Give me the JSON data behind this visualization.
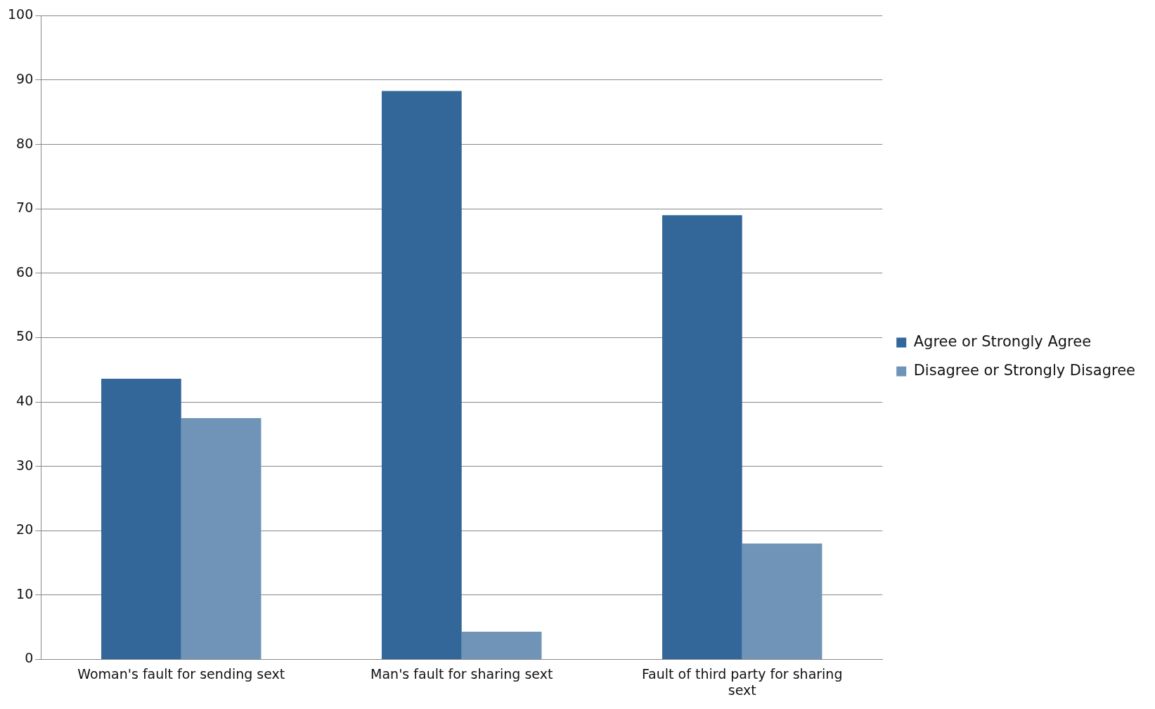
{
  "chart_data": {
    "type": "bar",
    "categories": [
      "Woman's fault for sending sext",
      "Man's fault for sharing sext",
      "Fault of third party for sharing sext"
    ],
    "series": [
      {
        "name": "Agree or Strongly Agree",
        "color": "#336699",
        "values": [
          43.6,
          88.3,
          69.0
        ]
      },
      {
        "name": "Disagree or Strongly Disagree",
        "color": "#7094b8",
        "values": [
          37.5,
          4.3,
          18.0
        ]
      }
    ],
    "ylim": [
      0,
      100
    ],
    "yticks": [
      0,
      10,
      20,
      30,
      40,
      50,
      60,
      70,
      80,
      90,
      100
    ],
    "grid": "y",
    "legend": "right"
  }
}
